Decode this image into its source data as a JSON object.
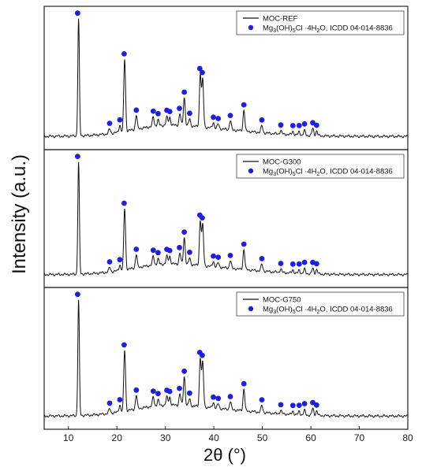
{
  "chart_data": {
    "type": "line",
    "xlabel": "2θ (°)",
    "ylabel": "Intensity (a.u.)",
    "xlim": [
      5,
      80
    ],
    "x_ticks": [
      10,
      20,
      30,
      40,
      50,
      60,
      70,
      80
    ],
    "grid": false,
    "legend_position": "top-right",
    "reference_marker": {
      "name_parts": [
        "Mg",
        "3",
        "(OH)",
        "5",
        "Cl ·4H",
        "2",
        "O, ICDD 04-014-8836"
      ],
      "color": "#1f1fe0",
      "positions": [
        11.9,
        18.5,
        20.6,
        21.5,
        24.0,
        27.5,
        28.5,
        30.3,
        30.9,
        32.9,
        33.9,
        35.0,
        37.1,
        37.6,
        39.9,
        40.9,
        43.4,
        46.2,
        49.9,
        53.8,
        56.3,
        57.6,
        58.7,
        60.4,
        61.2
      ]
    },
    "panels": [
      {
        "series_name": "MOC-REF",
        "series_color": "#111111",
        "peaks": [
          [
            12.1,
            100
          ],
          [
            18.5,
            4
          ],
          [
            20.6,
            6
          ],
          [
            21.6,
            62
          ],
          [
            24.0,
            12
          ],
          [
            27.5,
            8
          ],
          [
            28.5,
            5
          ],
          [
            30.3,
            7
          ],
          [
            30.9,
            7
          ],
          [
            33.0,
            10
          ],
          [
            33.9,
            24
          ],
          [
            35.0,
            6
          ],
          [
            37.2,
            45
          ],
          [
            37.7,
            40
          ],
          [
            39.9,
            5
          ],
          [
            40.9,
            4
          ],
          [
            43.4,
            8
          ],
          [
            46.2,
            18
          ],
          [
            49.9,
            6
          ],
          [
            53.8,
            3
          ],
          [
            56.3,
            3
          ],
          [
            57.6,
            3
          ],
          [
            58.7,
            4
          ],
          [
            60.4,
            6
          ],
          [
            61.2,
            4
          ]
        ]
      },
      {
        "series_name": "MOC-G300",
        "series_color": "#111111",
        "peaks": [
          [
            12.1,
            100
          ],
          [
            18.5,
            4
          ],
          [
            20.6,
            5
          ],
          [
            21.6,
            55
          ],
          [
            24.0,
            12
          ],
          [
            27.5,
            8
          ],
          [
            28.5,
            5
          ],
          [
            30.3,
            7
          ],
          [
            30.9,
            7
          ],
          [
            33.0,
            10
          ],
          [
            33.9,
            24
          ],
          [
            35.0,
            6
          ],
          [
            37.2,
            40
          ],
          [
            37.7,
            36
          ],
          [
            39.9,
            5
          ],
          [
            40.9,
            4
          ],
          [
            43.4,
            7
          ],
          [
            46.2,
            18
          ],
          [
            49.9,
            6
          ],
          [
            53.8,
            3
          ],
          [
            56.3,
            3
          ],
          [
            57.6,
            3
          ],
          [
            58.7,
            4
          ],
          [
            60.4,
            5
          ],
          [
            61.2,
            4
          ]
        ]
      },
      {
        "series_name": "MOC-G750",
        "series_color": "#111111",
        "peaks": [
          [
            12.1,
            100
          ],
          [
            18.5,
            4
          ],
          [
            20.6,
            6
          ],
          [
            21.6,
            53
          ],
          [
            24.0,
            12
          ],
          [
            27.5,
            8
          ],
          [
            28.5,
            5
          ],
          [
            30.3,
            7
          ],
          [
            30.9,
            7
          ],
          [
            33.0,
            10
          ],
          [
            33.9,
            25
          ],
          [
            35.0,
            6
          ],
          [
            37.2,
            42
          ],
          [
            37.7,
            38
          ],
          [
            39.9,
            5
          ],
          [
            40.9,
            4
          ],
          [
            43.4,
            7
          ],
          [
            46.2,
            19
          ],
          [
            49.9,
            6
          ],
          [
            53.8,
            3
          ],
          [
            56.3,
            3
          ],
          [
            57.6,
            3
          ],
          [
            58.7,
            4
          ],
          [
            60.4,
            6
          ],
          [
            61.2,
            4
          ]
        ]
      }
    ]
  }
}
